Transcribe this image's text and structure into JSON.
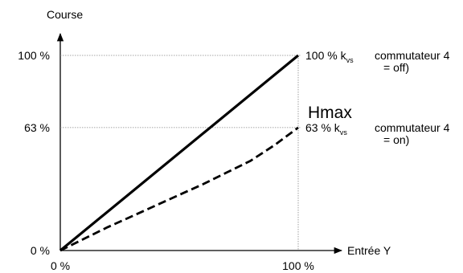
{
  "chart_data": {
    "type": "line",
    "title": "",
    "xlabel": "Entrée Y",
    "ylabel": "Course",
    "x_ticks": [
      "0 %",
      "100 %"
    ],
    "y_ticks": [
      "0 %",
      "63 %",
      "100 %"
    ],
    "xlim": [
      0,
      100
    ],
    "ylim": [
      0,
      100
    ],
    "grid": "dotted reference lines at 63 % and 100 %",
    "annotation": "Hmax",
    "series": [
      {
        "style": "solid",
        "x": [
          0,
          100
        ],
        "y": [
          0,
          100
        ],
        "label_main": "100 % k",
        "label_sub": "vs",
        "label_tail": "commutateur 4",
        "label_line2": "= off)"
      },
      {
        "style": "dashed",
        "x": [
          0,
          10,
          20,
          30,
          40,
          50,
          60,
          70,
          80,
          90,
          100
        ],
        "y": [
          0,
          6,
          12,
          17.5,
          23,
          28.5,
          34,
          40,
          46,
          54,
          63
        ],
        "label_main": "63 % k",
        "label_sub": "vs",
        "label_tail": "commutateur 4",
        "label_line2": "= on)"
      }
    ]
  }
}
